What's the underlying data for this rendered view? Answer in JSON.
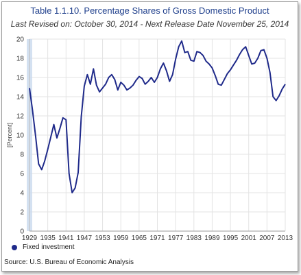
{
  "title": "Table 1.1.10. Percentage Shares of Gross Domestic Product",
  "subtitle": "Last Revised on: October 30, 2014 - Next Release Date November 25, 2014",
  "source": "Source: U.S. Bureau of Economic  Analysis",
  "colors": {
    "line": "#1f2a8a",
    "title": "#1f3f8c",
    "grid": "#e3e3e3",
    "band": "#c9d9ee"
  },
  "chart_data": {
    "type": "line",
    "title": "Table 1.1.10. Percentage Shares of Gross Domestic Product",
    "xlabel": "",
    "ylabel": "[Percent]",
    "ylim": [
      0,
      20
    ],
    "xlim": [
      1929,
      2013
    ],
    "yticks": [
      0,
      2,
      4,
      6,
      8,
      10,
      12,
      14,
      16,
      18,
      20
    ],
    "xticks": [
      1929,
      1935,
      1941,
      1947,
      1953,
      1959,
      1965,
      1971,
      1977,
      1983,
      1989,
      1995,
      2001,
      2007,
      2013
    ],
    "grid": true,
    "legend_position": "bottom-left",
    "series": [
      {
        "name": "Fixed investment",
        "x": [
          1929,
          1930,
          1931,
          1932,
          1933,
          1934,
          1935,
          1936,
          1937,
          1938,
          1939,
          1940,
          1941,
          1942,
          1943,
          1944,
          1945,
          1946,
          1947,
          1948,
          1949,
          1950,
          1951,
          1952,
          1953,
          1954,
          1955,
          1956,
          1957,
          1958,
          1959,
          1960,
          1961,
          1962,
          1963,
          1964,
          1965,
          1966,
          1967,
          1968,
          1969,
          1970,
          1971,
          1972,
          1973,
          1974,
          1975,
          1976,
          1977,
          1978,
          1979,
          1980,
          1981,
          1982,
          1983,
          1984,
          1985,
          1986,
          1987,
          1988,
          1989,
          1990,
          1991,
          1992,
          1993,
          1994,
          1995,
          1996,
          1997,
          1998,
          1999,
          2000,
          2001,
          2002,
          2003,
          2004,
          2005,
          2006,
          2007,
          2008,
          2009,
          2010,
          2011,
          2012,
          2013
        ],
        "values": [
          14.9,
          12.6,
          9.9,
          7.0,
          6.4,
          7.3,
          8.5,
          9.8,
          11.1,
          9.7,
          10.7,
          11.8,
          11.6,
          6.0,
          4.0,
          4.5,
          6.1,
          11.9,
          15.1,
          16.3,
          15.3,
          16.9,
          15.2,
          14.5,
          14.9,
          15.3,
          16.0,
          16.3,
          15.8,
          14.7,
          15.5,
          15.2,
          14.7,
          14.9,
          15.2,
          15.7,
          16.1,
          15.9,
          15.3,
          15.6,
          16.0,
          15.5,
          16.0,
          16.9,
          17.5,
          16.7,
          15.6,
          16.3,
          17.9,
          19.2,
          19.8,
          18.6,
          18.7,
          17.8,
          17.7,
          18.7,
          18.6,
          18.3,
          17.7,
          17.4,
          17.0,
          16.2,
          15.3,
          15.2,
          15.8,
          16.4,
          16.8,
          17.3,
          17.8,
          18.4,
          18.9,
          19.2,
          18.3,
          17.4,
          17.5,
          18.0,
          18.8,
          18.9,
          18.0,
          16.5,
          14.0,
          13.6,
          14.1,
          14.8,
          15.3
        ]
      }
    ]
  }
}
